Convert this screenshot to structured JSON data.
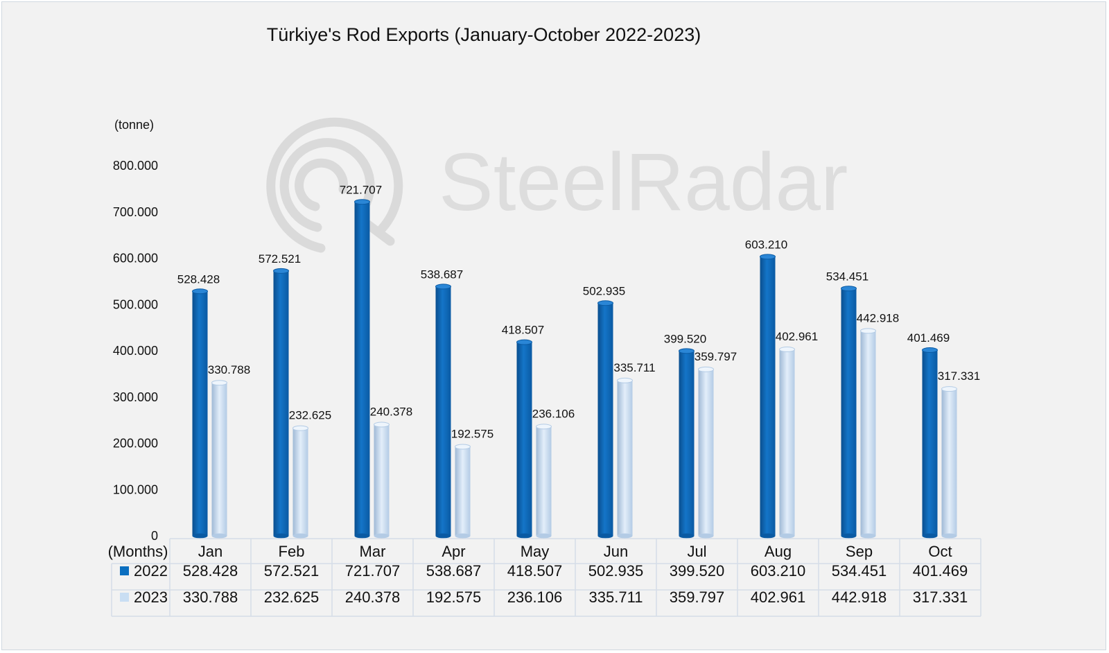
{
  "chart_data": {
    "type": "bar",
    "title": "Türkiye's Rod Exports (January-October 2022-2023)",
    "ylabel": "(tonne)",
    "xlabel": "(Months)",
    "ylim": [
      0,
      800000
    ],
    "yticks": [
      0,
      100000,
      200000,
      300000,
      400000,
      500000,
      600000,
      700000,
      800000
    ],
    "ytick_labels": [
      "0",
      "100.000",
      "200.000",
      "300.000",
      "400.000",
      "500.000",
      "600.000",
      "700.000",
      "800.000"
    ],
    "categories": [
      "Jan",
      "Feb",
      "Mar",
      "Apr",
      "May",
      "Jun",
      "Jul",
      "Aug",
      "Sep",
      "Oct"
    ],
    "series": [
      {
        "name": "2022",
        "color": "#0b6fc0",
        "values": [
          528428,
          572521,
          721707,
          538687,
          418507,
          502935,
          399520,
          603210,
          534451,
          401469
        ],
        "labels": [
          "528.428",
          "572.521",
          "721.707",
          "538.687",
          "418.507",
          "502.935",
          "399.520",
          "603.210",
          "534.451",
          "401.469"
        ]
      },
      {
        "name": "2023",
        "color": "#c9def3",
        "values": [
          330788,
          232625,
          240378,
          192575,
          236106,
          335711,
          359797,
          402961,
          442918,
          317331
        ],
        "labels": [
          "330.788",
          "232.625",
          "240.378",
          "192.575",
          "236.106",
          "335.711",
          "359.797",
          "402.961",
          "442.918",
          "317.331"
        ]
      }
    ],
    "data_table": true,
    "grid": false,
    "watermark": "SteelRadar"
  }
}
